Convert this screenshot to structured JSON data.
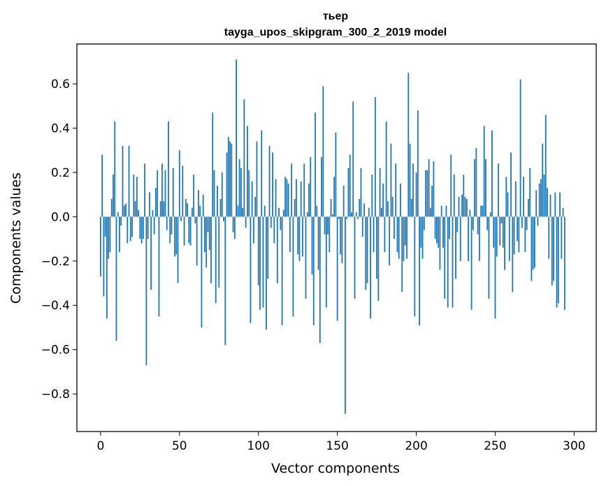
{
  "chart_data": {
    "type": "bar",
    "title": "тьер",
    "subtitle": "tayga_upos_skipgram_300_2_2019 model",
    "xlabel": "Vector components",
    "ylabel": "Components values",
    "xlim": [
      -15,
      314
    ],
    "ylim": [
      -0.97,
      0.78
    ],
    "xticks": [
      0,
      50,
      100,
      150,
      200,
      250,
      300
    ],
    "yticks": [
      0.6,
      0.4,
      0.2,
      0.0,
      -0.2,
      -0.4,
      -0.6,
      -0.8
    ],
    "ytick_labels": [
      "0.6",
      "0.4",
      "0.2",
      "0.0",
      "−0.2",
      "−0.4",
      "−0.6",
      "−0.8"
    ],
    "xtick_labels": [
      "0",
      "50",
      "100",
      "150",
      "200",
      "250",
      "300"
    ],
    "bar_color": "#1f77b4",
    "values": [
      -0.27,
      0.28,
      -0.36,
      -0.09,
      -0.46,
      -0.19,
      -0.16,
      0.08,
      0.19,
      0.43,
      -0.56,
      0.02,
      -0.16,
      -0.04,
      0.32,
      0.05,
      0.06,
      -0.12,
      0.32,
      -0.11,
      -0.09,
      0.19,
      0.07,
      0.18,
      0.03,
      -0.1,
      -0.12,
      -0.1,
      0.24,
      -0.67,
      -0.1,
      0.11,
      -0.33,
      0.03,
      -0.08,
      0.13,
      0.21,
      -0.45,
      0.07,
      0.24,
      0.07,
      0.21,
      -0.06,
      0.43,
      -0.12,
      -0.08,
      0.22,
      -0.18,
      -0.17,
      -0.3,
      0.3,
      -0.02,
      0.23,
      -0.13,
      0.08,
      0.06,
      -0.12,
      -0.13,
      0.04,
      0.19,
      -0.03,
      -0.22,
      0.12,
      0.05,
      -0.5,
      0.1,
      -0.16,
      -0.23,
      -0.07,
      -0.15,
      -0.3,
      0.47,
      0.21,
      -0.39,
      0.14,
      -0.32,
      0.08,
      0.2,
      -0.02,
      -0.58,
      0.29,
      0.36,
      0.34,
      0.33,
      -0.07,
      -0.1,
      0.71,
      0.05,
      0.26,
      0.22,
      0.04,
      0.53,
      -0.05,
      0.41,
      0.21,
      -0.48,
      0.16,
      -0.12,
      0.09,
      0.34,
      -0.31,
      -0.42,
      0.39,
      -0.41,
      0.05,
      -0.51,
      -0.28,
      0.32,
      -0.05,
      0.29,
      -0.12,
      0.17,
      -0.3,
      0.04,
      -0.06,
      -0.49,
      0.03,
      0.18,
      0.17,
      0.15,
      -0.16,
      0.24,
      -0.45,
      0.08,
      0.17,
      -0.17,
      -0.2,
      0.16,
      -0.18,
      0.24,
      -0.37,
      0.02,
      0.15,
      0.27,
      -0.26,
      -0.49,
      0.47,
      0.05,
      -0.24,
      -0.57,
      0.27,
      0.59,
      -0.08,
      -0.41,
      -0.08,
      -0.16,
      0.08,
      0.01,
      0.18,
      0.38,
      -0.47,
      -0.01,
      -0.17,
      -0.21,
      0.14,
      -0.89,
      -0.01,
      0.22,
      0.28,
      0.02,
      0.52,
      -0.37,
      0.02,
      -0.01,
      0.08,
      0.22,
      -0.09,
      0.06,
      -0.33,
      -0.3,
      0.04,
      -0.46,
      0.19,
      -0.16,
      0.54,
      -0.28,
      -0.38,
      0.22,
      0.04,
      0.15,
      -0.16,
      0.43,
      0.07,
      -0.22,
      0.33,
      0.09,
      -0.1,
      0.24,
      -0.16,
      -0.19,
      0.15,
      -0.34,
      -0.2,
      -0.13,
      -0.19,
      0.65,
      0.33,
      0.08,
      0.24,
      -0.45,
      0.2,
      0.48,
      -0.49,
      -0.14,
      -0.19,
      -0.06,
      0.21,
      0.21,
      0.26,
      0.04,
      0.14,
      0.25,
      -0.1,
      -0.12,
      -0.14,
      -0.24,
      0.05,
      -0.14,
      -0.37,
      0.05,
      -0.41,
      -0.1,
      0.28,
      -0.41,
      0.19,
      -0.28,
      -0.07,
      0.09,
      -0.2,
      0.1,
      0.19,
      0.09,
      0.08,
      -0.2,
      0.03,
      -0.42,
      -0.06,
      0.26,
      0.31,
      -0.08,
      -0.2,
      0.05,
      0.05,
      0.41,
      0.26,
      -0.06,
      -0.37,
      0.02,
      0.39,
      -0.14,
      -0.46,
      -0.18,
      0.24,
      -0.13,
      -0.03,
      -0.14,
      -0.24,
      0.18,
      0.11,
      -0.2,
      0.29,
      -0.34,
      -0.17,
      0.16,
      -0.11,
      -0.16,
      0.62,
      -0.05,
      0.18,
      -0.16,
      -0.06,
      0.08,
      0.22,
      -0.29,
      -0.24,
      -0.23,
      0.12,
      -0.04,
      0.15,
      0.17,
      0.33,
      0.19,
      0.46,
      0.13,
      -0.19,
      0.1,
      -0.31,
      -0.29,
      0.11,
      -0.41,
      -0.39,
      0.11,
      -0.19,
      0.04,
      -0.42
    ]
  }
}
